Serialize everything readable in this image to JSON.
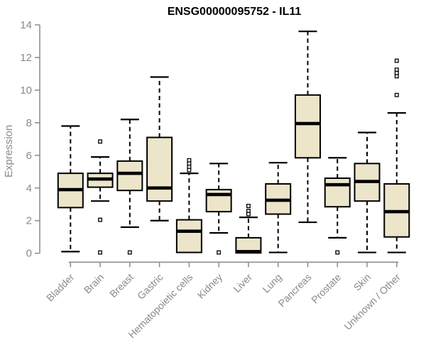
{
  "chart_data": {
    "type": "boxplot",
    "title": "ENSG00000095752 - IL11",
    "ylabel": "Expression",
    "ylim": [
      0,
      14
    ],
    "yticks": [
      0,
      2,
      4,
      6,
      8,
      10,
      12,
      14
    ],
    "grid": false,
    "legend": "none",
    "categories": [
      "Bladder",
      "Brain",
      "Breast",
      "Gastric",
      "Hematopoietic cells",
      "Kidney",
      "Liver",
      "Lung",
      "Pancreas",
      "Prostate",
      "Skin",
      "Unknown / Other"
    ],
    "series": [
      {
        "name": "Bladder",
        "low": 0.1,
        "q1": 2.8,
        "median": 3.9,
        "q3": 4.9,
        "high": 7.8,
        "outliers": []
      },
      {
        "name": "Brain",
        "low": 3.2,
        "q1": 4.05,
        "median": 4.55,
        "q3": 4.9,
        "high": 5.9,
        "outliers": [
          6.85,
          2.05,
          0.05
        ]
      },
      {
        "name": "Breast",
        "low": 1.6,
        "q1": 3.85,
        "median": 4.9,
        "q3": 5.65,
        "high": 8.2,
        "outliers": [
          0.05
        ]
      },
      {
        "name": "Gastric",
        "low": 2.0,
        "q1": 3.2,
        "median": 4.0,
        "q3": 7.1,
        "high": 10.8,
        "outliers": []
      },
      {
        "name": "Hematopoietic cells",
        "low": 0.0,
        "q1": 0.05,
        "median": 1.35,
        "q3": 2.05,
        "high": 4.9,
        "outliers": [
          5.7,
          5.5,
          5.3,
          5.1
        ]
      },
      {
        "name": "Kidney",
        "low": 1.25,
        "q1": 2.55,
        "median": 3.6,
        "q3": 3.9,
        "high": 5.5,
        "outliers": [
          0.05
        ]
      },
      {
        "name": "Liver",
        "low": 0.0,
        "q1": 0.02,
        "median": 0.1,
        "q3": 0.95,
        "high": 2.2,
        "outliers": [
          2.9,
          2.6,
          2.4
        ]
      },
      {
        "name": "Lung",
        "low": 0.05,
        "q1": 2.4,
        "median": 3.25,
        "q3": 4.25,
        "high": 5.55,
        "outliers": []
      },
      {
        "name": "Pancreas",
        "low": 1.9,
        "q1": 5.85,
        "median": 7.95,
        "q3": 9.7,
        "high": 13.6,
        "outliers": []
      },
      {
        "name": "Prostate",
        "low": 0.95,
        "q1": 2.85,
        "median": 4.2,
        "q3": 4.6,
        "high": 5.85,
        "outliers": [
          0.05
        ]
      },
      {
        "name": "Skin",
        "low": 0.05,
        "q1": 3.2,
        "median": 4.4,
        "q3": 5.5,
        "high": 7.4,
        "outliers": []
      },
      {
        "name": "Unknown / Other",
        "low": 0.05,
        "q1": 1.0,
        "median": 2.55,
        "q3": 4.25,
        "high": 8.6,
        "outliers": [
          11.8,
          11.25,
          11.05,
          10.85,
          9.7
        ]
      }
    ],
    "colors": {
      "box_fill": "#ece5ca",
      "box_border": "#000000",
      "median": "#000000",
      "axis_line": "#8a8a8a",
      "tick_text": "#8a8a8a",
      "title_text": "#000000",
      "background": "#ffffff"
    }
  }
}
